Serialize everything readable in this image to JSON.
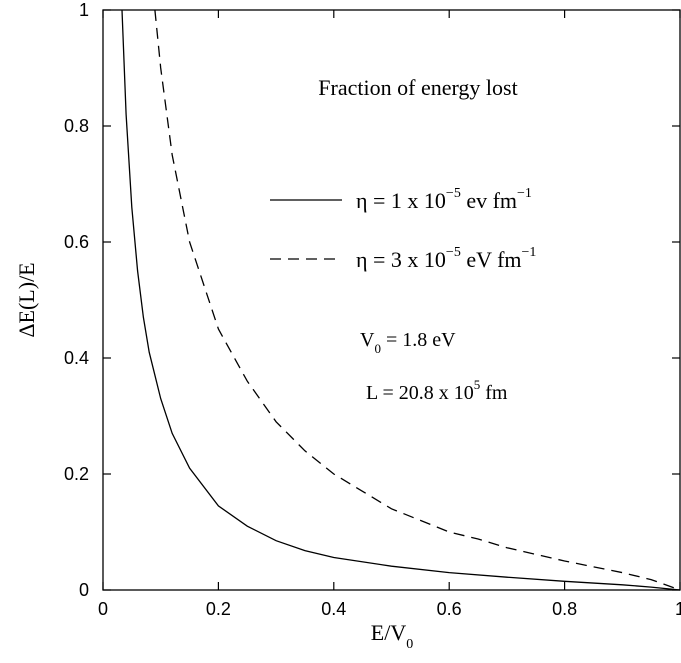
{
  "chart_data": {
    "type": "line",
    "title": "Fraction of energy lost",
    "xlabel": {
      "main": "E/V",
      "sub": "0"
    },
    "ylabel": "ΔE(L)/E",
    "xlim": [
      0,
      1
    ],
    "ylim": [
      0,
      1
    ],
    "x_ticks": [
      0,
      0.2,
      0.4,
      0.6,
      0.8,
      1
    ],
    "x_tick_labels": [
      "0",
      "0.2",
      "0.4",
      "0.6",
      "0.8",
      "1"
    ],
    "y_ticks": [
      0,
      0.2,
      0.4,
      0.6,
      0.8,
      1
    ],
    "y_tick_labels": [
      "0",
      "0.2",
      "0.4",
      "0.6",
      "0.8",
      "1"
    ],
    "grid": false,
    "legend_position": "upper-right",
    "series": [
      {
        "name": "η = 1 x 10^-5 ev fm^-1",
        "legend": {
          "pre": "η = 1 x 10",
          "exp1": "−5",
          "mid": " ev fm",
          "exp2": "−1"
        },
        "style": "solid",
        "x": [
          0.033,
          0.04,
          0.05,
          0.06,
          0.07,
          0.08,
          0.1,
          0.12,
          0.15,
          0.2,
          0.25,
          0.3,
          0.35,
          0.4,
          0.5,
          0.6,
          0.7,
          0.8,
          0.9,
          0.95,
          1.0
        ],
        "y": [
          1.0,
          0.82,
          0.66,
          0.55,
          0.47,
          0.41,
          0.33,
          0.27,
          0.21,
          0.145,
          0.11,
          0.085,
          0.068,
          0.056,
          0.041,
          0.03,
          0.022,
          0.015,
          0.009,
          0.005,
          0.0
        ]
      },
      {
        "name": "η = 3 x 10^-5 eV fm^-1",
        "legend": {
          "pre": "η = 3 x 10",
          "exp1": "−5",
          "mid": " eV fm",
          "exp2": "−1"
        },
        "style": "dashed",
        "x": [
          0.09,
          0.1,
          0.12,
          0.15,
          0.2,
          0.25,
          0.3,
          0.35,
          0.4,
          0.45,
          0.5,
          0.55,
          0.6,
          0.65,
          0.7,
          0.8,
          0.9,
          0.95,
          1.0
        ],
        "y": [
          1.0,
          0.9,
          0.75,
          0.6,
          0.45,
          0.36,
          0.29,
          0.24,
          0.2,
          0.17,
          0.14,
          0.12,
          0.1,
          0.088,
          0.073,
          0.05,
          0.03,
          0.018,
          0.0
        ]
      }
    ],
    "annotations": [
      {
        "parts": [
          {
            "t": "V",
            "s": ""
          },
          {
            "t": "0",
            "s": "sub"
          },
          {
            "t": " = 1.8 eV",
            "s": ""
          }
        ]
      },
      {
        "parts": [
          {
            "t": "L = 20.8 x 10",
            "s": ""
          },
          {
            "t": "5",
            "s": "sup"
          },
          {
            "t": " fm",
            "s": ""
          }
        ]
      }
    ]
  }
}
